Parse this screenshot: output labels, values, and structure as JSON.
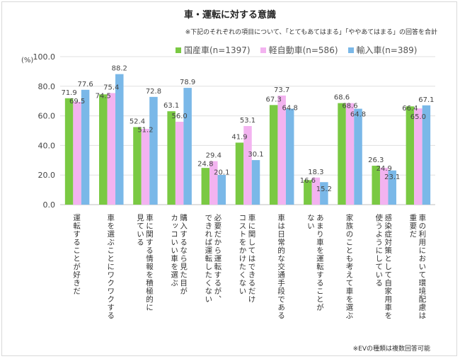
{
  "title": "車・運転に対する意識",
  "note_top": "※下記のそれぞれの項目について、「とてもあてはまる」「ややあてはまる」の回答を合計",
  "note_bottom": "※EVの種類は複数回答可能",
  "colors": {
    "domestic": "#7ac943",
    "kei": "#f3b3f0",
    "import": "#7ab8e8"
  },
  "chart_data": {
    "type": "bar",
    "title": "車・運転に対する意識",
    "ylabel": "(%)",
    "ylim": [
      0,
      100
    ],
    "yticks": [
      "0.0",
      "20.0",
      "40.0",
      "60.0",
      "80.0",
      "100.0"
    ],
    "grid": true,
    "legend_position": "top",
    "categories": [
      "運転することが好きだ",
      "車を選ぶことにワクワクする",
      "車に関する情報を積極的に\n見ている",
      "購入するなら見た目が\nカッコいい車を選ぶ",
      "必要だから運転するが、\nできれば運転したくない",
      "車に関してはできるだけ\nコストをかけたくない",
      "車は日常的な交通手段である",
      "あまり車を運転することが\nない",
      "家族のことも考えて車を選ぶ",
      "感染症対策として自家用車を\n使うようにしている",
      "車の利用において環境配慮は\n重要だ"
    ],
    "series": [
      {
        "name": "国産車(n=1397)",
        "values": [
          71.9,
          74.5,
          52.4,
          63.1,
          24.8,
          41.9,
          67.3,
          16.6,
          68.6,
          26.3,
          66.4
        ]
      },
      {
        "name": "軽自動車(n=586)",
        "values": [
          69.5,
          75.4,
          51.2,
          56.0,
          29.4,
          53.1,
          73.7,
          18.3,
          68.6,
          24.9,
          65.0
        ]
      },
      {
        "name": "輸入車(n=389)",
        "values": [
          77.6,
          88.2,
          72.8,
          78.9,
          20.1,
          30.1,
          64.8,
          15.2,
          64.8,
          23.1,
          67.1
        ]
      }
    ]
  }
}
